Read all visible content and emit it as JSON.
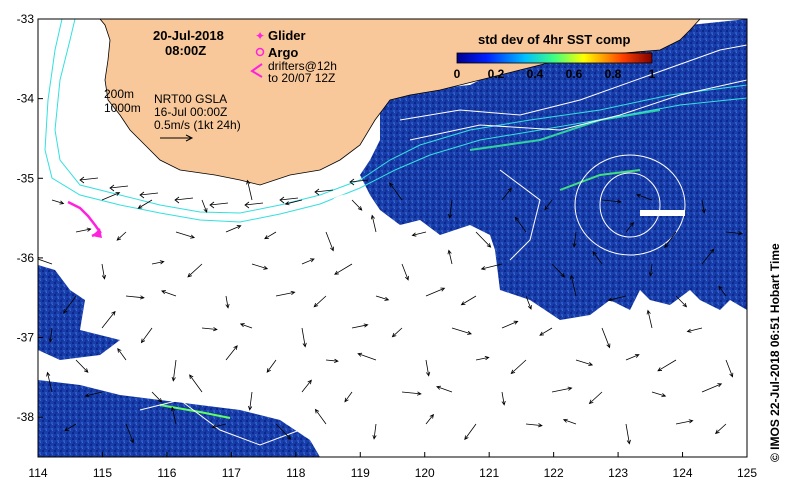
{
  "map": {
    "lon_range": [
      114,
      125
    ],
    "lat_range": [
      -38.5,
      -33
    ],
    "x_ticks": [
      "114",
      "115",
      "116",
      "117",
      "118",
      "119",
      "120",
      "121",
      "122",
      "123",
      "124",
      "125"
    ],
    "y_ticks": [
      "-33",
      "-34",
      "-35",
      "-36",
      "-37",
      "-38"
    ],
    "colors": {
      "land": "#f8c89a",
      "ocean_data": "#1a3ea8",
      "contour": "#ffffff",
      "isobath": "#33e0e0",
      "marker": "#ff22dd"
    }
  },
  "header": {
    "date": "20-Jul-2018",
    "time": "08:00Z"
  },
  "legend": {
    "glider": "Glider",
    "argo": "Argo",
    "drifters_line1": "drifters@12h",
    "drifters_line2": "to 20/07 12Z"
  },
  "annotations": {
    "isobath_200": "200m",
    "isobath_1000": "1000m",
    "gsla_line1": "NRT00 GSLA",
    "gsla_line2": "16-Jul 00:00Z",
    "scale_label": "0.5m/s (1kt 24h)"
  },
  "colorbar": {
    "title": "std dev of 4hr SST comp",
    "tick_labels": [
      "0",
      "0.2",
      "0.4",
      "0.6",
      "0.8",
      "1"
    ],
    "range": [
      0,
      1
    ]
  },
  "credit": "© IMOS 22-Jul-2018 06:51 Hobart Time"
}
